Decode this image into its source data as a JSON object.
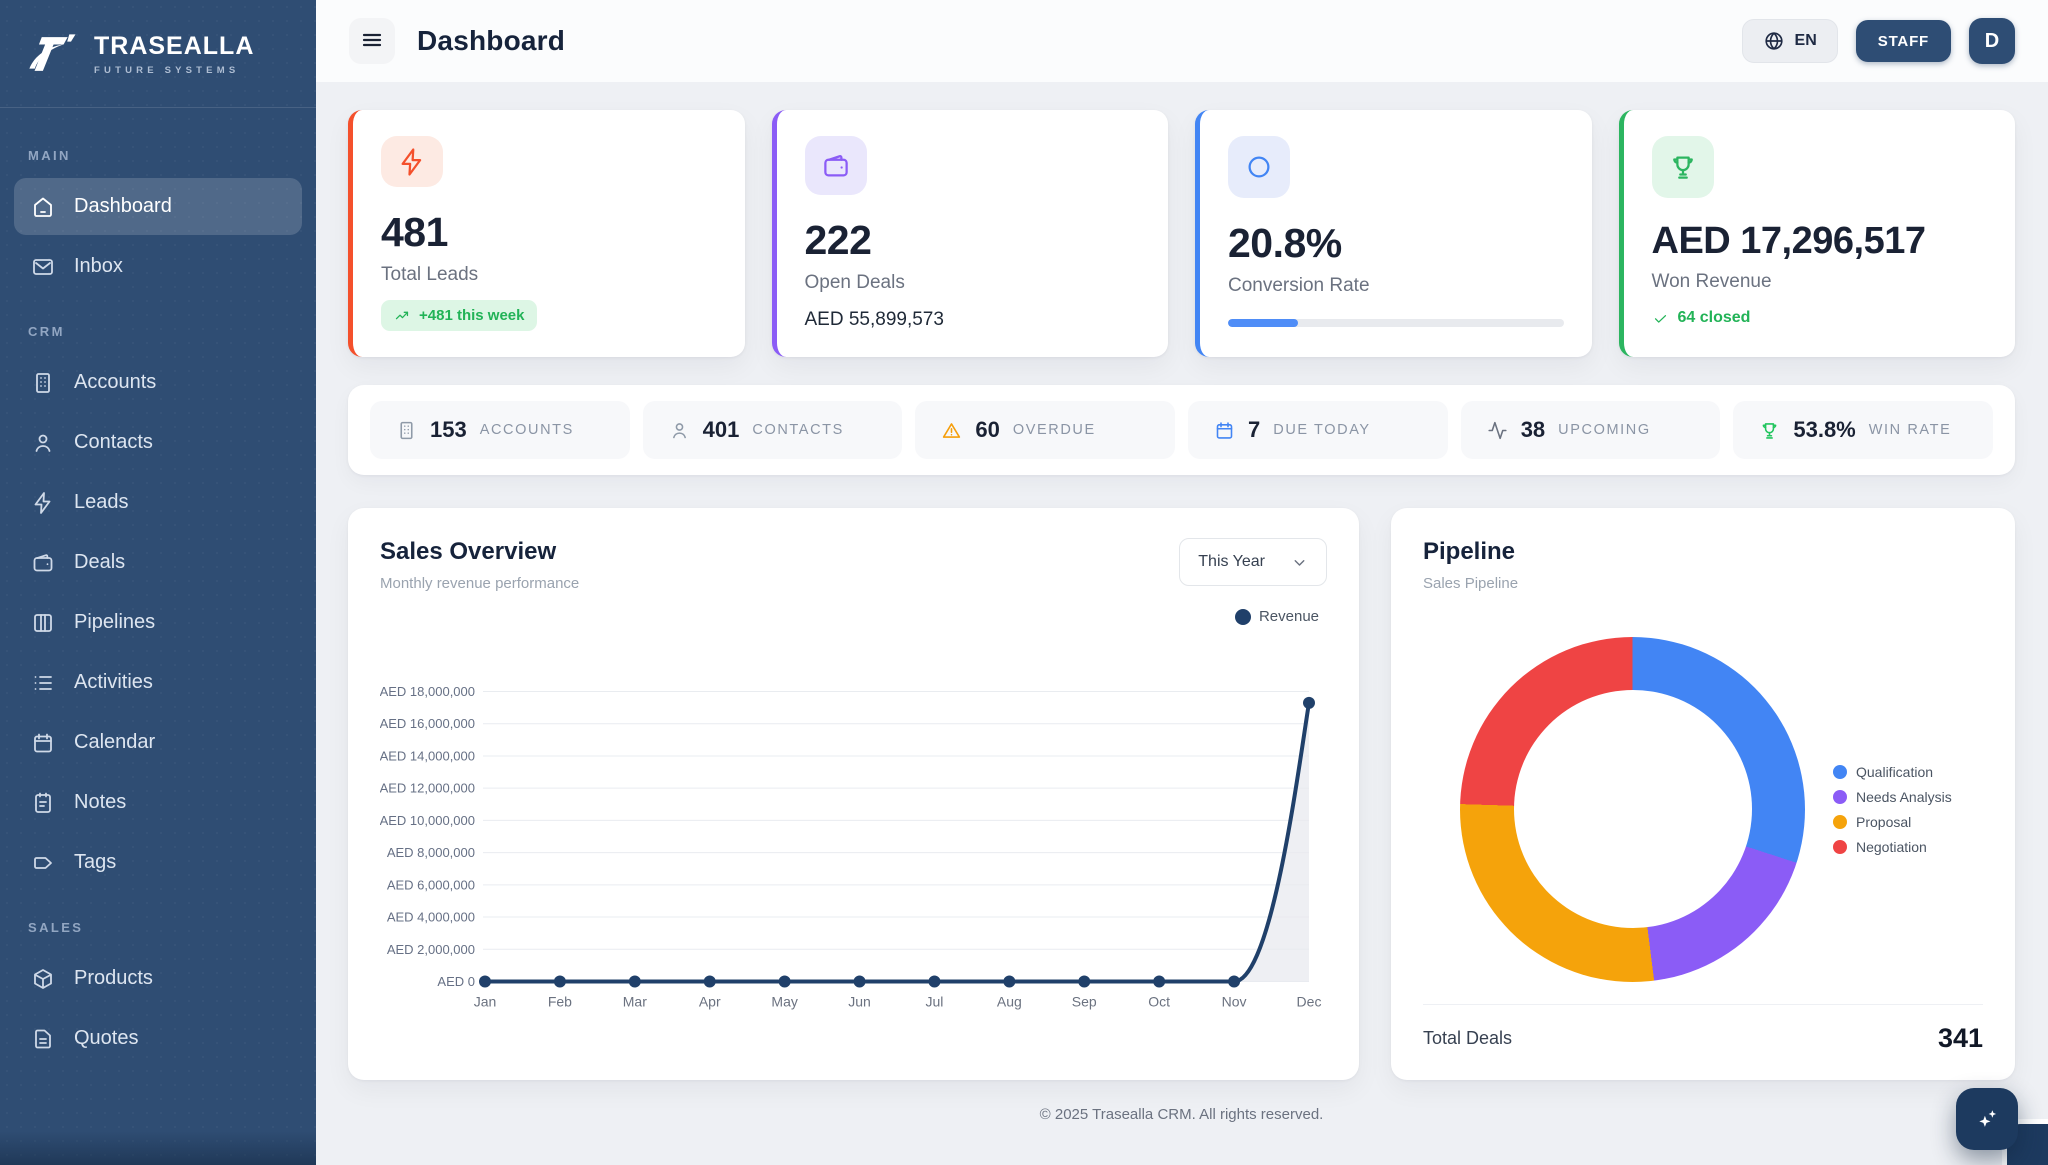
{
  "brand": {
    "name": "TRASEALLA",
    "tagline": "FUTURE SYSTEMS"
  },
  "header": {
    "title": "Dashboard",
    "lang": "EN",
    "role_badge": "STAFF",
    "avatar_initial": "D"
  },
  "sidebar": {
    "sections": [
      {
        "label": "MAIN",
        "items": [
          {
            "label": "Dashboard",
            "icon": "home",
            "active": true
          },
          {
            "label": "Inbox",
            "icon": "mail",
            "active": false
          }
        ]
      },
      {
        "label": "CRM",
        "items": [
          {
            "label": "Accounts",
            "icon": "building",
            "active": false
          },
          {
            "label": "Contacts",
            "icon": "user",
            "active": false
          },
          {
            "label": "Leads",
            "icon": "zap",
            "active": false
          },
          {
            "label": "Deals",
            "icon": "wallet",
            "active": false
          },
          {
            "label": "Pipelines",
            "icon": "columns",
            "active": false
          },
          {
            "label": "Activities",
            "icon": "list",
            "active": false
          },
          {
            "label": "Calendar",
            "icon": "calendar",
            "active": false
          },
          {
            "label": "Notes",
            "icon": "notepad",
            "active": false
          },
          {
            "label": "Tags",
            "icon": "tag",
            "active": false
          }
        ]
      },
      {
        "label": "SALES",
        "items": [
          {
            "label": "Products",
            "icon": "package",
            "active": false
          },
          {
            "label": "Quotes",
            "icon": "file-text",
            "active": false
          }
        ]
      }
    ]
  },
  "stat_cards": [
    {
      "id": "total-leads",
      "icon": "zap",
      "accent": "#f4502c",
      "icon_bg": "#fdeae3",
      "icon_color": "#f4502c",
      "value": "481",
      "label": "Total Leads",
      "badge": {
        "icon": "trending-up",
        "text": "+481 this week",
        "color": "#22b357",
        "bg": "#ddf6e5"
      }
    },
    {
      "id": "open-deals",
      "icon": "wallet",
      "accent": "#8b5cf6",
      "icon_bg": "#eae7fc",
      "icon_color": "#8b5cf6",
      "value": "222",
      "label": "Open Deals",
      "sub_value": "AED 55,899,573"
    },
    {
      "id": "conversion-rate",
      "icon": "circle",
      "accent": "#4285f4",
      "icon_bg": "#e7ecfb",
      "icon_color": "#4285f4",
      "value": "20.8%",
      "label": "Conversion Rate",
      "progress_pct": 20.8,
      "progress_color": "#4f8df7"
    },
    {
      "id": "won-revenue",
      "icon": "trophy",
      "accent": "#2cb560",
      "icon_bg": "#e2f6e9",
      "icon_color": "#2cb560",
      "value": "AED 17,296,517",
      "label": "Won Revenue",
      "closed_note": {
        "icon": "check",
        "text": "64 closed",
        "color": "#22b357"
      }
    }
  ],
  "quick_stats": [
    {
      "id": "accounts",
      "icon": "building",
      "icon_color": "#8f9aa8",
      "value": "153",
      "label": "ACCOUNTS"
    },
    {
      "id": "contacts",
      "icon": "user",
      "icon_color": "#8f9aa8",
      "value": "401",
      "label": "CONTACTS"
    },
    {
      "id": "overdue",
      "icon": "alert-triangle",
      "icon_color": "#f59e0b",
      "value": "60",
      "label": "OVERDUE"
    },
    {
      "id": "due-today",
      "icon": "calendar",
      "icon_color": "#4285f4",
      "value": "7",
      "label": "DUE TODAY"
    },
    {
      "id": "upcoming",
      "icon": "activity",
      "icon_color": "#6b7280",
      "value": "38",
      "label": "UPCOMING"
    },
    {
      "id": "win-rate",
      "icon": "trophy",
      "icon_color": "#22c55e",
      "value": "53.8%",
      "label": "WIN RATE"
    }
  ],
  "sales_overview": {
    "title": "Sales Overview",
    "subtitle": "Monthly revenue performance",
    "period": "This Year",
    "legend_label": "Revenue"
  },
  "pipeline": {
    "title": "Pipeline",
    "subtitle": "Sales Pipeline",
    "total_label": "Total Deals",
    "total_value": "341"
  },
  "chart_data": [
    {
      "type": "line",
      "title": "Sales Overview",
      "x": [
        "Jan",
        "Feb",
        "Mar",
        "Apr",
        "May",
        "Jun",
        "Jul",
        "Aug",
        "Sep",
        "Oct",
        "Nov",
        "Dec"
      ],
      "series": [
        {
          "name": "Revenue",
          "color": "#20406a",
          "values": [
            0,
            0,
            0,
            0,
            0,
            0,
            0,
            0,
            0,
            0,
            0,
            17296517
          ]
        }
      ],
      "ylim": [
        0,
        18000000
      ],
      "ytick_step": 2000000,
      "ytick_prefix": "AED ",
      "grid": true,
      "legend_position": "top-right",
      "area_fill": "#e8eaef"
    },
    {
      "type": "pie",
      "donut": true,
      "title": "Sales Pipeline",
      "labels": [
        "Qualification",
        "Needs Analysis",
        "Proposal",
        "Negotiation"
      ],
      "percentages": [
        30,
        18,
        27.5,
        24.5
      ],
      "colors": [
        "#4285f4",
        "#8b5cf6",
        "#f5a30b",
        "#ef4444"
      ],
      "total_label": "Total Deals",
      "total": 341,
      "legend_position": "right"
    }
  ],
  "footer": {
    "copyright": "© 2025 Trasealla CRM. All rights reserved."
  }
}
